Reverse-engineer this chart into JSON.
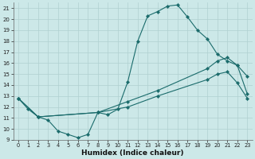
{
  "xlabel": "Humidex (Indice chaleur)",
  "bg_color": "#cce8e8",
  "line_color": "#1a6b6b",
  "grid_color": "#b0d0d0",
  "xlim": [
    -0.5,
    23.5
  ],
  "ylim": [
    9,
    21.5
  ],
  "xticks": [
    0,
    1,
    2,
    3,
    4,
    5,
    6,
    7,
    8,
    9,
    10,
    11,
    12,
    13,
    14,
    15,
    16,
    17,
    18,
    19,
    20,
    21,
    22,
    23
  ],
  "yticks": [
    9,
    10,
    11,
    12,
    13,
    14,
    15,
    16,
    17,
    18,
    19,
    20,
    21
  ],
  "line1_x": [
    0,
    1,
    2,
    3,
    4,
    5,
    6,
    7,
    8,
    9,
    10,
    11,
    12,
    13,
    14,
    15,
    16,
    17,
    18,
    19,
    20,
    21,
    22,
    23
  ],
  "line1_y": [
    12.8,
    11.8,
    11.1,
    10.8,
    9.8,
    9.5,
    9.2,
    9.5,
    11.5,
    11.3,
    11.8,
    14.3,
    18.0,
    20.3,
    20.7,
    21.2,
    21.3,
    20.2,
    19.0,
    18.2,
    16.8,
    16.2,
    15.8,
    14.8
  ],
  "line2_x": [
    0,
    2,
    8,
    11,
    14,
    19,
    20,
    21,
    22,
    23
  ],
  "line2_y": [
    12.8,
    11.1,
    11.5,
    12.5,
    13.5,
    15.5,
    16.2,
    16.5,
    15.8,
    13.2
  ],
  "line3_x": [
    0,
    2,
    8,
    11,
    14,
    19,
    20,
    21,
    22,
    23
  ],
  "line3_y": [
    12.8,
    11.1,
    11.5,
    12.0,
    13.0,
    14.5,
    15.0,
    15.2,
    14.2,
    12.8
  ]
}
